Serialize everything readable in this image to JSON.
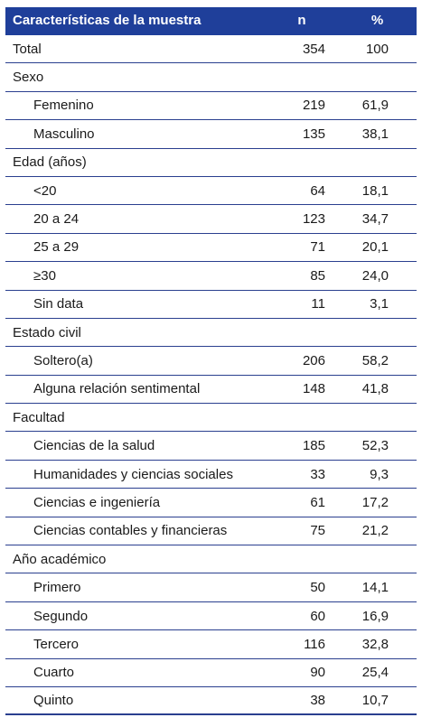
{
  "table": {
    "headers": {
      "characteristic": "Características de la muestra",
      "n": "n",
      "percent": "%"
    },
    "total": {
      "label": "Total",
      "n": "354",
      "percent": "100"
    },
    "sections": [
      {
        "title": "Sexo",
        "rows": [
          {
            "label": "Femenino",
            "n": "219",
            "percent": "61,9"
          },
          {
            "label": "Masculino",
            "n": "135",
            "percent": "38,1"
          }
        ]
      },
      {
        "title": "Edad (años)",
        "rows": [
          {
            "label": "<20",
            "n": "64",
            "percent": "18,1"
          },
          {
            "label": "20 a 24",
            "n": "123",
            "percent": "34,7"
          },
          {
            "label": "25 a 29",
            "n": "71",
            "percent": "20,1"
          },
          {
            "label": "≥30",
            "n": "85",
            "percent": "24,0"
          },
          {
            "label": "Sin data",
            "n": "11",
            "percent": "3,1"
          }
        ]
      },
      {
        "title": "Estado civil",
        "rows": [
          {
            "label": "Soltero(a)",
            "n": "206",
            "percent": "58,2"
          },
          {
            "label": "Alguna relación sentimental",
            "n": "148",
            "percent": "41,8"
          }
        ]
      },
      {
        "title": "Facultad",
        "rows": [
          {
            "label": "Ciencias de la salud",
            "n": "185",
            "percent": "52,3"
          },
          {
            "label": "Humanidades y ciencias sociales",
            "n": "33",
            "percent": "9,3"
          },
          {
            "label": "Ciencias e ingeniería",
            "n": "61",
            "percent": "17,2"
          },
          {
            "label": "Ciencias contables y financieras",
            "n": "75",
            "percent": "21,2"
          }
        ]
      },
      {
        "title": "Año académico",
        "rows": [
          {
            "label": "Primero",
            "n": "50",
            "percent": "14,1"
          },
          {
            "label": "Segundo",
            "n": "60",
            "percent": "16,9"
          },
          {
            "label": "Tercero",
            "n": "116",
            "percent": "32,8"
          },
          {
            "label": "Cuarto",
            "n": "90",
            "percent": "25,4"
          },
          {
            "label": "Quinto",
            "n": "38",
            "percent": "10,7"
          }
        ]
      }
    ]
  }
}
